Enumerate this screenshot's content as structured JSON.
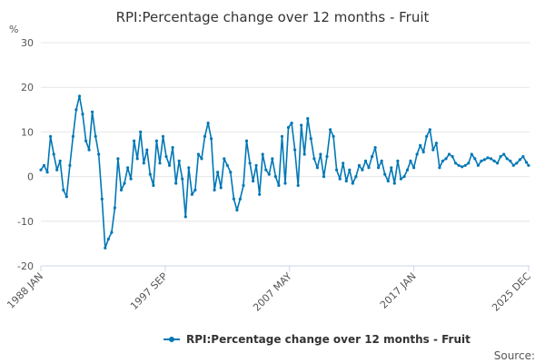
{
  "chart_data": {
    "type": "line",
    "title": "RPI:Percentage change over 12 months - Fruit",
    "ylabel": "%",
    "ylim": [
      -20,
      30
    ],
    "yticks": [
      -20,
      -10,
      0,
      10,
      20,
      30
    ],
    "xlim": [
      1988.0,
      2026.0
    ],
    "xticks": [
      {
        "x": 1988.0,
        "label": "1988 JAN"
      },
      {
        "x": 1997.67,
        "label": "1997 SEP"
      },
      {
        "x": 2007.33,
        "label": "2007 MAY"
      },
      {
        "x": 2017.0,
        "label": "2017 JAN"
      },
      {
        "x": 2025.92,
        "label": "2025 DEC"
      }
    ],
    "grid": true,
    "legend": "bottom",
    "color": "#0077b6",
    "series": [
      {
        "name": "RPI:Percentage change over 12 months - Fruit",
        "x": [
          1988.0,
          1988.25,
          1988.5,
          1988.75,
          1989.0,
          1989.25,
          1989.5,
          1989.75,
          1990.0,
          1990.25,
          1990.5,
          1990.75,
          1991.0,
          1991.25,
          1991.5,
          1991.75,
          1992.0,
          1992.25,
          1992.5,
          1992.75,
          1993.0,
          1993.25,
          1993.5,
          1993.75,
          1994.0,
          1994.25,
          1994.5,
          1994.75,
          1995.0,
          1995.25,
          1995.5,
          1995.75,
          1996.0,
          1996.25,
          1996.5,
          1996.75,
          1997.0,
          1997.25,
          1997.5,
          1997.75,
          1998.0,
          1998.25,
          1998.5,
          1998.75,
          1999.0,
          1999.25,
          1999.5,
          1999.75,
          2000.0,
          2000.25,
          2000.5,
          2000.75,
          2001.0,
          2001.25,
          2001.5,
          2001.75,
          2002.0,
          2002.25,
          2002.5,
          2002.75,
          2003.0,
          2003.25,
          2003.5,
          2003.75,
          2004.0,
          2004.25,
          2004.5,
          2004.75,
          2005.0,
          2005.25,
          2005.5,
          2005.75,
          2006.0,
          2006.25,
          2006.5,
          2006.75,
          2007.0,
          2007.25,
          2007.5,
          2007.75,
          2008.0,
          2008.25,
          2008.5,
          2008.75,
          2009.0,
          2009.25,
          2009.5,
          2009.75,
          2010.0,
          2010.25,
          2010.5,
          2010.75,
          2011.0,
          2011.25,
          2011.5,
          2011.75,
          2012.0,
          2012.25,
          2012.5,
          2012.75,
          2013.0,
          2013.25,
          2013.5,
          2013.75,
          2014.0,
          2014.25,
          2014.5,
          2014.75,
          2015.0,
          2015.25,
          2015.5,
          2015.75,
          2016.0,
          2016.25,
          2016.5,
          2016.75,
          2017.0,
          2017.25,
          2017.5,
          2017.75,
          2018.0,
          2018.25,
          2018.5,
          2018.75,
          2019.0,
          2019.25,
          2019.5,
          2019.75,
          2020.0,
          2020.25,
          2020.5,
          2020.75,
          2021.0,
          2021.25,
          2021.5,
          2021.75,
          2022.0,
          2022.25,
          2022.5,
          2022.75,
          2023.0,
          2023.25,
          2023.5,
          2023.75,
          2024.0,
          2024.25,
          2024.5,
          2024.75,
          2025.0,
          2025.25,
          2025.5,
          2025.75,
          2025.92
        ],
        "values": [
          1.5,
          2.5,
          1.0,
          9.0,
          5.0,
          1.5,
          3.5,
          -3.0,
          -4.5,
          2.5,
          9.0,
          15.0,
          18.0,
          14.0,
          8.0,
          6.0,
          14.5,
          9.0,
          5.0,
          -5.0,
          -16.0,
          -14.0,
          -12.5,
          -7.0,
          4.0,
          -3.0,
          -1.5,
          2.0,
          -0.5,
          8.0,
          4.0,
          10.0,
          3.0,
          6.0,
          0.5,
          -2.0,
          8.0,
          3.0,
          9.0,
          4.5,
          2.5,
          6.5,
          -1.5,
          3.5,
          -0.5,
          -9.0,
          2.0,
          -4.0,
          -3.0,
          5.0,
          4.0,
          9.0,
          12.0,
          8.5,
          -3.0,
          1.0,
          -2.5,
          4.0,
          2.5,
          1.0,
          -5.0,
          -7.5,
          -5.0,
          -2.0,
          8.0,
          3.0,
          -1.0,
          2.5,
          -4.0,
          5.0,
          1.5,
          0.5,
          4.0,
          0.0,
          -2.0,
          9.0,
          -1.5,
          11.0,
          12.0,
          6.0,
          -2.0,
          11.5,
          5.0,
          13.0,
          8.5,
          4.0,
          2.0,
          5.0,
          0.0,
          4.5,
          10.5,
          9.0,
          1.5,
          -0.5,
          3.0,
          -1.0,
          1.5,
          -1.5,
          0.0,
          2.5,
          1.5,
          3.5,
          2.0,
          4.5,
          6.5,
          2.0,
          3.5,
          0.5,
          -1.0,
          2.0,
          -1.5,
          3.5,
          -0.5,
          0.0,
          1.5,
          3.5,
          2.0,
          5.0,
          7.0,
          5.5,
          9.0,
          10.5,
          6.0,
          7.5,
          2.0,
          3.5,
          4.0,
          5.0,
          4.5,
          3.0,
          2.5,
          2.2,
          2.5,
          3.0,
          5.0,
          4.0,
          2.5,
          3.5,
          3.8,
          4.2,
          4.0,
          3.5,
          3.0,
          4.5,
          5.0,
          4.0,
          3.5,
          2.5,
          3.0,
          3.8,
          4.5,
          3.2,
          2.5
        ]
      }
    ]
  },
  "legend": {
    "label": "RPI:Percentage change over 12 months - Fruit"
  },
  "credits": {
    "label": "Source:"
  }
}
